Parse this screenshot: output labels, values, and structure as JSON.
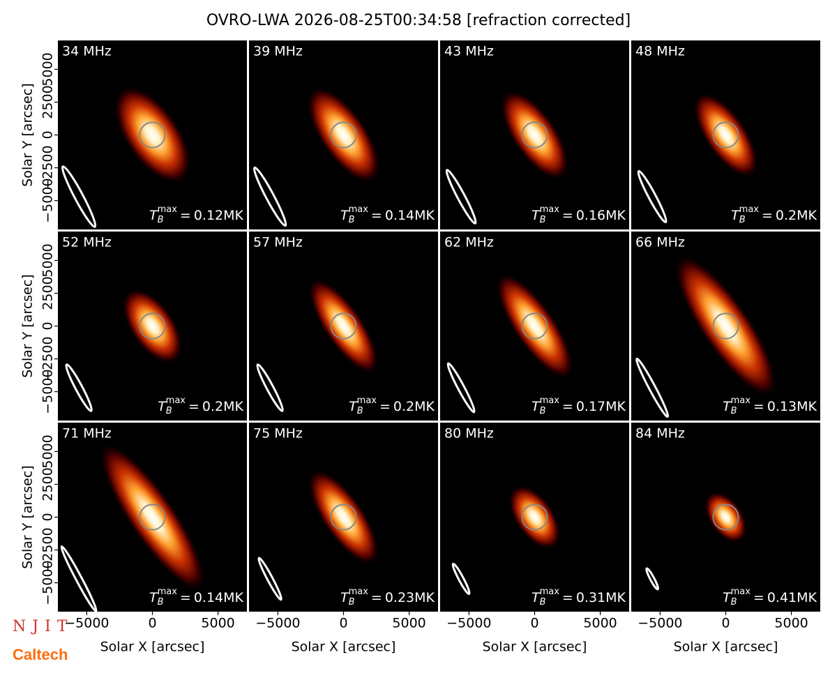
{
  "chart_data": {
    "type": "image-grid",
    "title": "OVRO-LWA 2026-08-25T00:34:58 [refraction corrected]",
    "xlabel": "Solar X [arcsec]",
    "ylabel": "Solar Y [arcsec]",
    "xlim": [
      -7200,
      7200
    ],
    "ylim": [
      -7200,
      7200
    ],
    "xticks": [
      {
        "value": -5000,
        "label": "−5000"
      },
      0,
      5000
    ],
    "yticks": [
      {
        "value": -5000,
        "label": "−5000"
      },
      {
        "value": -2500,
        "label": "−2500"
      },
      0,
      2500,
      5000
    ],
    "tb_symbol": {
      "base": "T",
      "sub": "B",
      "sup": "max",
      "eq": "="
    },
    "panels": [
      {
        "label": "34 MHz",
        "tb_max": 0.12,
        "tb_max_label": "0.12MK"
      },
      {
        "label": "39 MHz",
        "tb_max": 0.14,
        "tb_max_label": "0.14MK"
      },
      {
        "label": "43 MHz",
        "tb_max": 0.16,
        "tb_max_label": "0.16MK"
      },
      {
        "label": "48 MHz",
        "tb_max": 0.2,
        "tb_max_label": "0.2MK"
      },
      {
        "label": "52 MHz",
        "tb_max": 0.2,
        "tb_max_label": "0.2MK"
      },
      {
        "label": "57 MHz",
        "tb_max": 0.2,
        "tb_max_label": "0.2MK"
      },
      {
        "label": "62 MHz",
        "tb_max": 0.17,
        "tb_max_label": "0.17MK"
      },
      {
        "label": "66 MHz",
        "tb_max": 0.13,
        "tb_max_label": "0.13MK"
      },
      {
        "label": "71 MHz",
        "tb_max": 0.14,
        "tb_max_label": "0.14MK"
      },
      {
        "label": "75 MHz",
        "tb_max": 0.23,
        "tb_max_label": "0.23MK"
      },
      {
        "label": "80 MHz",
        "tb_max": 0.31,
        "tb_max_label": "0.31MK"
      },
      {
        "label": "84 MHz",
        "tb_max": 0.41,
        "tb_max_label": "0.41MK"
      }
    ],
    "logos": [
      "NJIT",
      "Caltech"
    ]
  }
}
